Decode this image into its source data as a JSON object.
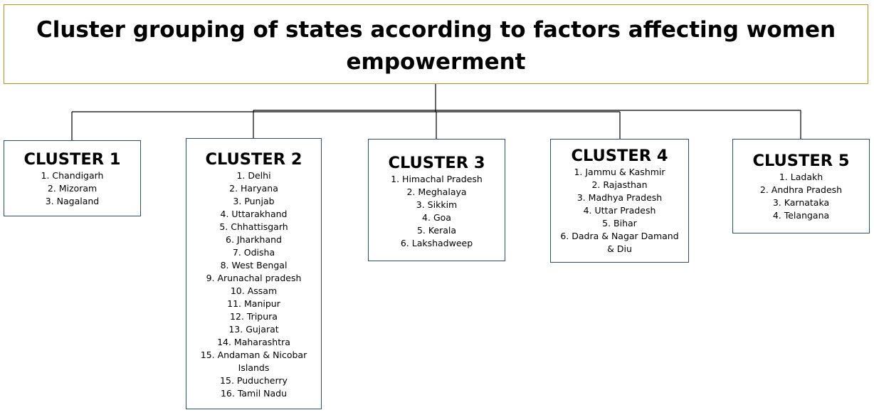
{
  "title": {
    "line1": "Cluster grouping of states according to factors affecting women",
    "line2": "empowerment"
  },
  "clusters": [
    {
      "name": "CLUSTER 1",
      "items": [
        "1. Chandigarh",
        "2. Mizoram",
        "3. Nagaland"
      ]
    },
    {
      "name": "CLUSTER 2",
      "items": [
        "1. Delhi",
        "2. Haryana",
        "3. Punjab",
        "4. Uttarakhand",
        "5. Chhattisgarh",
        "6. Jharkhand",
        "7. Odisha",
        "8. West Bengal",
        "9. Arunachal pradesh",
        "10. Assam",
        "11. Manipur",
        "12. Tripura",
        "13. Gujarat",
        "14. Maharashtra",
        "15. Andaman & Nicobar Islands",
        "15. Puducherry",
        "16. Tamil Nadu"
      ]
    },
    {
      "name": "CLUSTER 3",
      "items": [
        "1. Himachal Pradesh",
        "2. Meghalaya",
        "3. Sikkim",
        "4. Goa",
        "5. Kerala",
        "6. Lakshadweep"
      ]
    },
    {
      "name": "CLUSTER 4",
      "items": [
        "1. Jammu & Kashmir",
        "2. Rajasthan",
        "3. Madhya Pradesh",
        "4. Uttar Pradesh",
        "5. Bihar",
        "6. Dadra & Nagar Damand & Diu"
      ]
    },
    {
      "name": "CLUSTER 5",
      "items": [
        "1. Ladakh",
        "2. Andhra Pradesh",
        "3. Karnataka",
        "4. Telangana"
      ]
    }
  ]
}
